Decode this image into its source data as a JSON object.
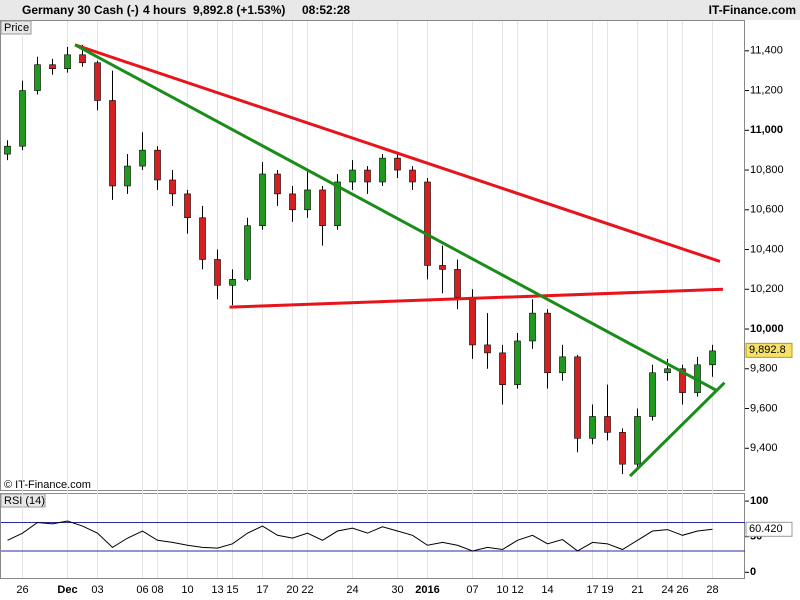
{
  "header": {
    "instrument": "Germany 30 Cash (-)",
    "interval": "4 hours",
    "quote": "9,892.8 (+1.53%)",
    "time": "08:52:28",
    "brand": "IT-Finance.com"
  },
  "chart_data": [
    {
      "type": "candlestick",
      "label": "Price",
      "credit": "© IT-Finance.com",
      "categories": [
        null,
        "26",
        null,
        null,
        "Dec",
        null,
        "03",
        null,
        null,
        "06",
        "08",
        null,
        "10",
        null,
        "13",
        "15",
        null,
        "17",
        null,
        "20",
        "22",
        null,
        null,
        "24",
        null,
        null,
        "30",
        null,
        "2016",
        null,
        null,
        "07",
        null,
        "10",
        "12",
        null,
        "14",
        null,
        null,
        "17",
        "19",
        null,
        "21",
        null,
        "24",
        "26",
        null,
        "28"
      ],
      "open": [
        10880,
        10920,
        11200,
        11330,
        11310,
        11380,
        11340,
        11150,
        10720,
        10820,
        10900,
        10750,
        10680,
        10560,
        10350,
        10220,
        10250,
        10520,
        10780,
        10680,
        10600,
        10700,
        10520,
        10740,
        10800,
        10740,
        10860,
        10800,
        10740,
        10320,
        10300,
        10160,
        9920,
        9880,
        9720,
        9940,
        10080,
        9780,
        9860,
        9450,
        9560,
        9480,
        9320,
        9560,
        9780,
        9800,
        9680,
        9820
      ],
      "high": [
        10950,
        11250,
        11370,
        11360,
        11420,
        11430,
        11350,
        11300,
        10880,
        10990,
        10920,
        10800,
        10700,
        10620,
        10400,
        10300,
        10560,
        10840,
        10800,
        10720,
        10800,
        10720,
        10780,
        10850,
        10820,
        10880,
        10890,
        10820,
        10760,
        10420,
        10350,
        10200,
        10080,
        9920,
        9980,
        10150,
        10100,
        9920,
        9870,
        9620,
        9720,
        9500,
        9600,
        9820,
        9850,
        9820,
        9860,
        9920
      ],
      "low": [
        10850,
        10900,
        11180,
        11280,
        11290,
        11320,
        11100,
        10650,
        10680,
        10800,
        10700,
        10620,
        10480,
        10300,
        10150,
        10120,
        10240,
        10500,
        10620,
        10540,
        10560,
        10420,
        10500,
        10700,
        10680,
        10720,
        10760,
        10700,
        10250,
        10180,
        10100,
        9850,
        9800,
        9620,
        9700,
        9900,
        9700,
        9740,
        9380,
        9420,
        9440,
        9270,
        9300,
        9540,
        9740,
        9620,
        9660,
        9760
      ],
      "close": [
        10920,
        11200,
        11330,
        11310,
        11380,
        11340,
        11150,
        10720,
        10820,
        10900,
        10750,
        10680,
        10560,
        10350,
        10220,
        10250,
        10520,
        10780,
        10680,
        10600,
        10700,
        10520,
        10740,
        10800,
        10740,
        10860,
        10800,
        10740,
        10320,
        10300,
        10160,
        9920,
        9880,
        9720,
        9940,
        10080,
        9780,
        9860,
        9450,
        9560,
        9480,
        9320,
        9560,
        9780,
        9800,
        9680,
        9820,
        9890
      ],
      "up_color": "#1f9a1f",
      "down_color": "#d42020",
      "last": {
        "value": 9892.8,
        "label": "9,892.8"
      },
      "ylim": [
        9190,
        11550
      ],
      "yticks": [
        {
          "value": 9400,
          "label": "9,400"
        },
        {
          "value": 9600,
          "label": "9,600"
        },
        {
          "value": 9800,
          "label": "9,800"
        },
        {
          "value": 10000,
          "label": "10,000"
        },
        {
          "value": 10200,
          "label": "10,200"
        },
        {
          "value": 10400,
          "label": "10,400"
        },
        {
          "value": 10600,
          "label": "10,600"
        },
        {
          "value": 10800,
          "label": "10,800"
        },
        {
          "value": 11000,
          "label": "11,000"
        },
        {
          "value": 11200,
          "label": "11,200"
        },
        {
          "value": 11400,
          "label": "11,400"
        }
      ],
      "trendlines": [
        {
          "color": "#e8141b",
          "x": [
            4.5,
            47.5
          ],
          "y": [
            11430,
            10340
          ]
        },
        {
          "color": "#e8141b",
          "x": [
            14.8,
            47.7
          ],
          "y": [
            10110,
            10200
          ]
        },
        {
          "color": "#1a8c1a",
          "x": [
            4.5,
            47.3
          ],
          "y": [
            11430,
            9690
          ]
        },
        {
          "color": "#1a8c1a",
          "x": [
            41.5,
            47.8
          ],
          "y": [
            9260,
            9730
          ]
        }
      ]
    },
    {
      "type": "line",
      "label": "RSI (14)",
      "color": "#000000",
      "values": [
        45,
        55,
        70,
        68,
        72,
        65,
        55,
        35,
        48,
        58,
        45,
        42,
        38,
        35,
        34,
        40,
        55,
        65,
        52,
        48,
        55,
        45,
        58,
        62,
        55,
        64,
        58,
        52,
        38,
        42,
        38,
        30,
        35,
        32,
        45,
        52,
        40,
        46,
        30,
        42,
        40,
        32,
        45,
        58,
        60,
        52,
        58,
        60.42
      ],
      "last": {
        "value": 60.42,
        "label": "60.420"
      },
      "ylim": [
        -8,
        110
      ],
      "yticks": [
        0,
        50,
        100
      ],
      "bands": [
        30,
        70
      ]
    }
  ]
}
